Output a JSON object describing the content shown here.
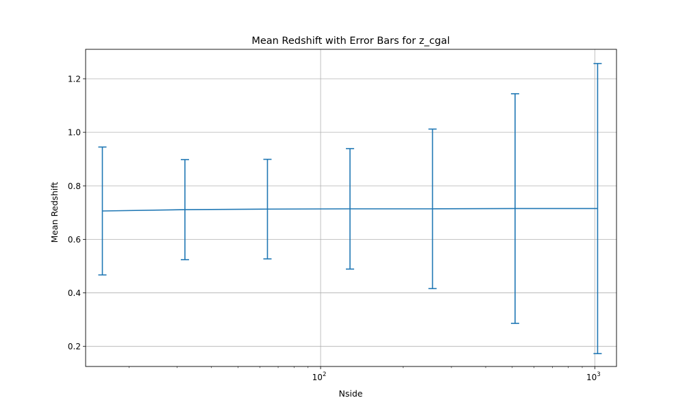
{
  "chart_data": {
    "type": "line",
    "title": "Mean Redshift with Error Bars for z_cgal",
    "xlabel": "Nside",
    "ylabel": "Mean Redshift",
    "xscale": "log",
    "xlim": [
      13.9,
      1200
    ],
    "ylim": [
      0.125,
      1.31
    ],
    "grid": true,
    "color": "#1f77b4",
    "x": [
      16,
      32,
      64,
      128,
      256,
      512,
      1024
    ],
    "y": [
      0.706,
      0.711,
      0.713,
      0.714,
      0.714,
      0.715,
      0.715
    ],
    "yerr": [
      0.239,
      0.187,
      0.186,
      0.225,
      0.298,
      0.429,
      0.542
    ],
    "x_ticks": [
      {
        "value": 100,
        "base": "10",
        "exp": "2"
      },
      {
        "value": 1000,
        "base": "10",
        "exp": "3"
      }
    ],
    "x_minor_ticks": [
      20,
      30,
      40,
      50,
      60,
      70,
      80,
      90,
      200,
      300,
      400,
      500,
      600,
      700,
      800,
      900
    ],
    "y_ticks": [
      {
        "value": 0.2,
        "label": "0.2"
      },
      {
        "value": 0.4,
        "label": "0.4"
      },
      {
        "value": 0.6,
        "label": "0.6"
      },
      {
        "value": 0.8,
        "label": "0.8"
      },
      {
        "value": 1.0,
        "label": "1.0"
      },
      {
        "value": 1.2,
        "label": "1.2"
      }
    ]
  }
}
